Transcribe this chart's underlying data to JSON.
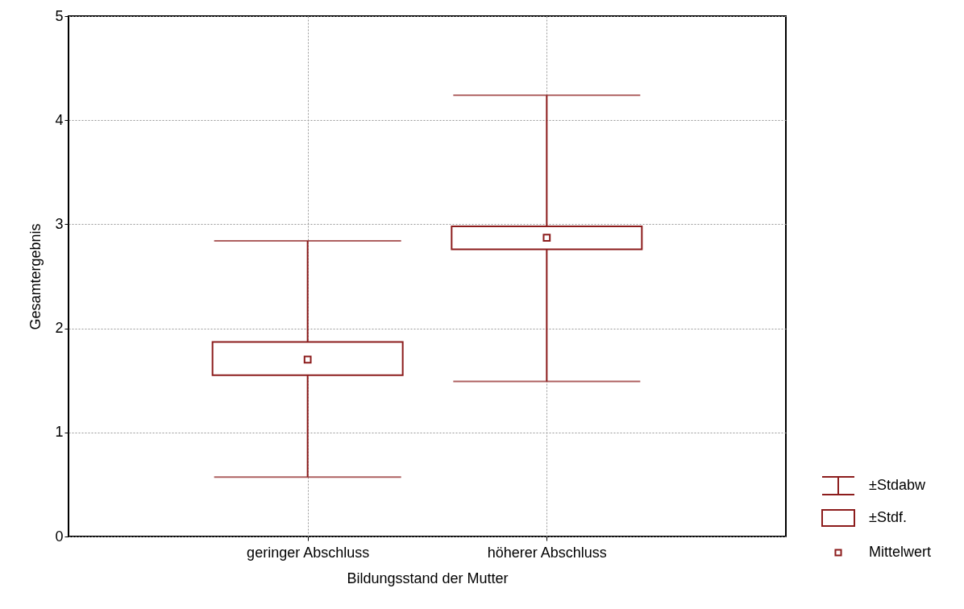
{
  "chart_data": {
    "type": "box",
    "xlabel": "Bildungsstand der Mutter",
    "ylabel": "Gesamtergebnis",
    "categories": [
      "geringer Abschluss",
      "höherer Abschluss"
    ],
    "series": [
      {
        "color": "#8c1c1c",
        "boxes": [
          {
            "low": 0.57,
            "q1": 1.55,
            "mean": 1.7,
            "q3": 1.87,
            "high": 2.84
          },
          {
            "low": 1.49,
            "q1": 2.76,
            "mean": 2.87,
            "q3": 2.98,
            "high": 4.24
          }
        ]
      }
    ],
    "ylim": [
      0,
      5
    ],
    "yticks": [
      0,
      1,
      2,
      3,
      4,
      5
    ],
    "grid": true,
    "annotations": [
      "±Stdabw",
      "±Stdf.",
      "Mittelwert"
    ]
  }
}
